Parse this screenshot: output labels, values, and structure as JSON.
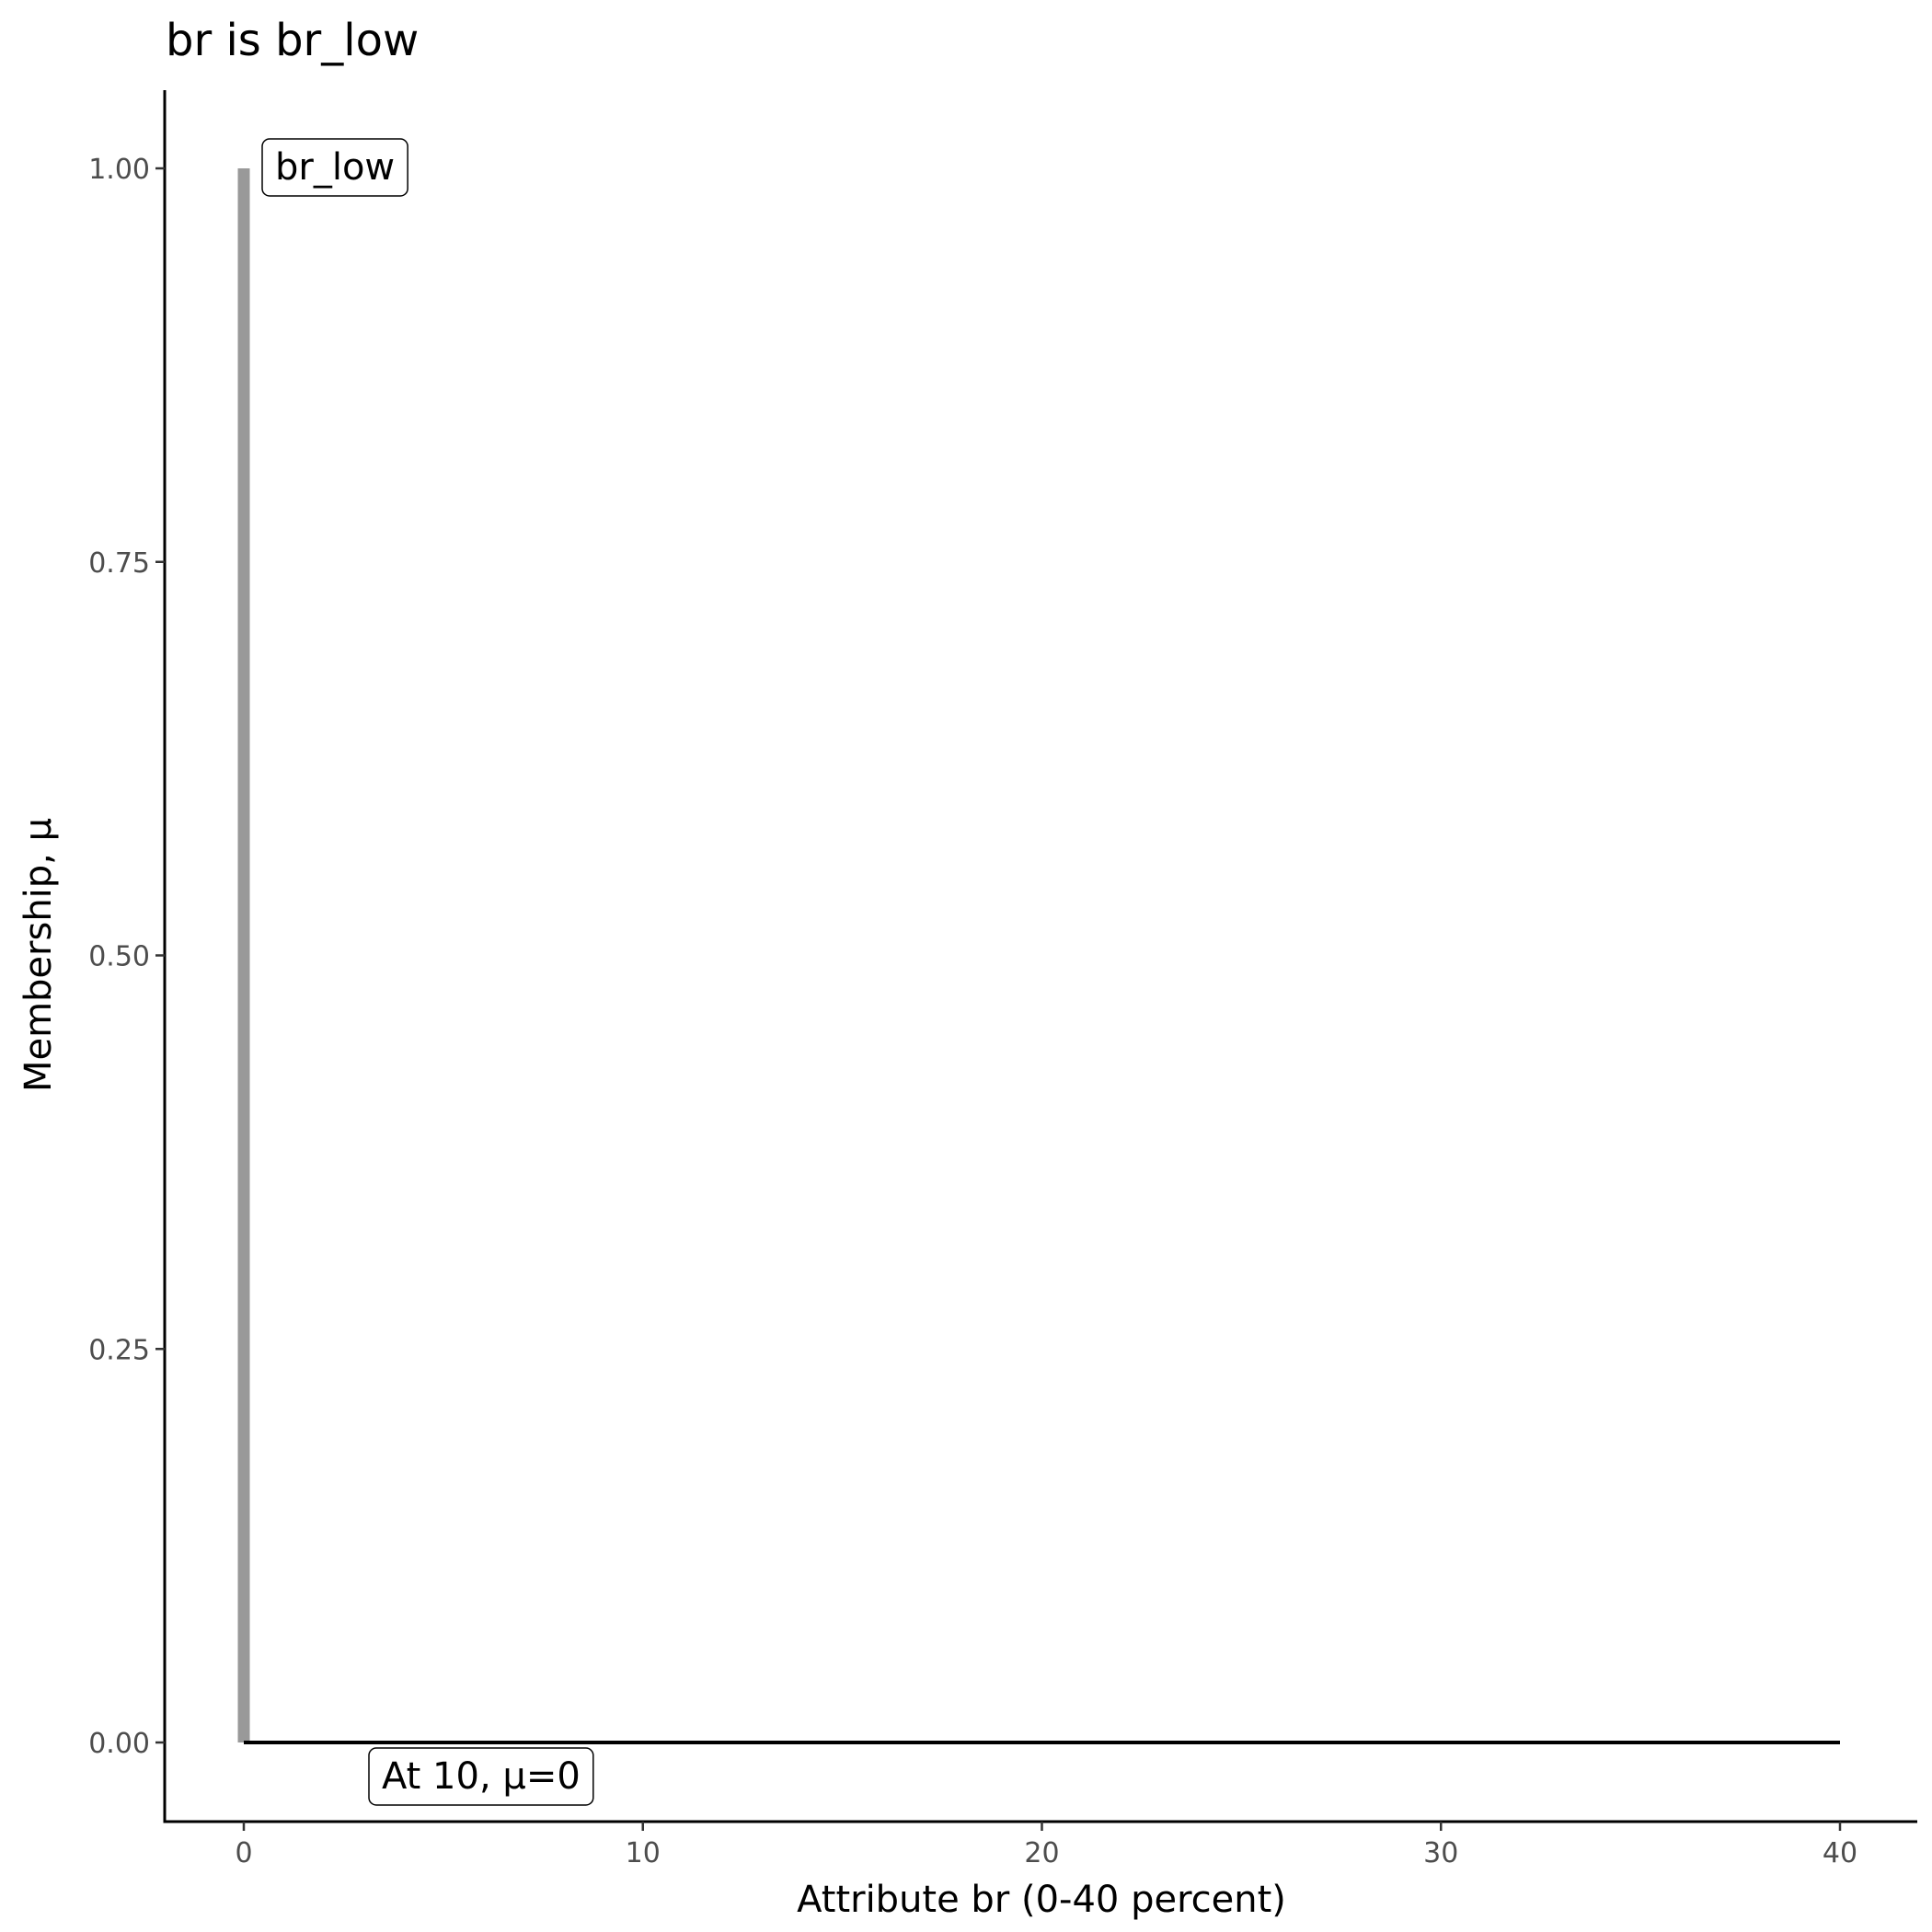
{
  "chart_data": {
    "type": "line",
    "title": "br is br_low",
    "xlabel": "Attribute br (0-40 percent)",
    "ylabel": "Membership, μ",
    "xlim": [
      -2,
      42
    ],
    "ylim": [
      -0.05,
      1.05
    ],
    "xticks": [
      0,
      10,
      20,
      30,
      40
    ],
    "xtick_labels": [
      "0",
      "10",
      "20",
      "30",
      "40"
    ],
    "yticks": [
      0,
      0.25,
      0.5,
      0.75,
      1
    ],
    "ytick_labels": [
      "0.00",
      "0.25",
      "0.50",
      "0.75",
      "1.00"
    ],
    "grid": false,
    "series": [
      {
        "color": "#999999",
        "x": [
          0,
          0
        ],
        "y": [
          0,
          1
        ]
      },
      {
        "color": "#000000",
        "x": [
          0,
          40
        ],
        "y": [
          0,
          0
        ]
      }
    ],
    "annotations": [
      {
        "text": "br_low",
        "x": 0,
        "y": 1
      },
      {
        "text": "At 10, μ=0",
        "x": 10,
        "y": 0
      }
    ]
  }
}
